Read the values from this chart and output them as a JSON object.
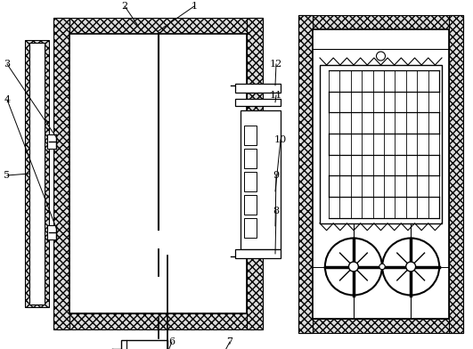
{
  "bg_color": "#ffffff",
  "line_color": "#000000",
  "fig_width": 5.31,
  "fig_height": 3.92,
  "dpi": 100
}
